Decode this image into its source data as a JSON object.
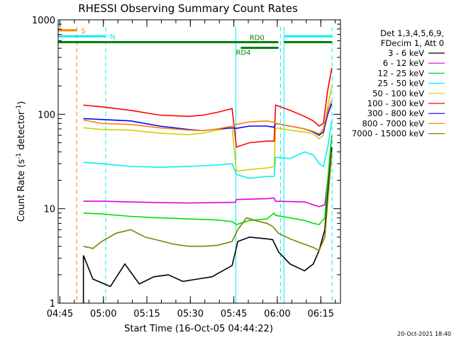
{
  "chart_data": {
    "type": "line",
    "title": "RHESSI Observing Summary Count Rates",
    "xlabel": "Start Time (16-Oct-05 04:44:22)",
    "ylabel": "Count Rate (s⁻¹ detector⁻¹)",
    "ylabel_parts": [
      "Count Rate (s",
      "-1",
      " detector",
      "-1",
      ")"
    ],
    "x_unit": "minutes after 04:44:22",
    "x_ticks": [
      {
        "label": "04:45",
        "value": 0.6
      },
      {
        "label": "05:00",
        "value": 15.6
      },
      {
        "label": "05:15",
        "value": 30.6
      },
      {
        "label": "05:30",
        "value": 45.6
      },
      {
        "label": "05:45",
        "value": 60.6
      },
      {
        "label": "06:00",
        "value": 75.6
      },
      {
        "label": "06:15",
        "value": 90.6
      }
    ],
    "xlim": [
      0,
      97.4
    ],
    "ylim": [
      1,
      1000
    ],
    "y_scale": "log",
    "y_ticks": [
      {
        "label": "1",
        "value": 1
      },
      {
        "label": "10",
        "value": 10
      },
      {
        "label": "100",
        "value": 100
      },
      {
        "label": "1000",
        "value": 1000
      }
    ],
    "legend_header": [
      "Det 1,3,4,5,6,9,",
      "FDecim 1, Att 0"
    ],
    "legend_placement": "right",
    "series": [
      {
        "name": "3 - 6 keV",
        "color": "#000000",
        "points": [
          [
            8.7,
            1.0
          ],
          [
            8.7,
            3.2
          ],
          [
            12,
            1.8
          ],
          [
            18,
            1.5
          ],
          [
            23,
            2.6
          ],
          [
            28,
            1.6
          ],
          [
            33,
            1.9
          ],
          [
            38,
            2.0
          ],
          [
            43,
            1.7
          ],
          [
            48,
            1.8
          ],
          [
            53,
            1.9
          ],
          [
            60,
            2.5
          ],
          [
            62,
            4.5
          ],
          [
            66,
            5.0
          ],
          [
            72,
            4.8
          ],
          [
            74,
            4.7
          ],
          [
            76,
            3.5
          ],
          [
            80,
            2.6
          ],
          [
            85,
            2.2
          ],
          [
            88,
            2.6
          ],
          [
            90,
            3.6
          ],
          [
            92,
            6
          ],
          [
            93,
            15
          ],
          [
            94.4,
            45
          ]
        ]
      },
      {
        "name": "6 - 12 keV",
        "color": "#e000e0",
        "points": [
          [
            8.7,
            12
          ],
          [
            15,
            12
          ],
          [
            25,
            11.8
          ],
          [
            35,
            11.6
          ],
          [
            45,
            11.5
          ],
          [
            55,
            11.6
          ],
          [
            61,
            11.7
          ],
          [
            61.5,
            12.5
          ],
          [
            72,
            12.8
          ],
          [
            74.5,
            13
          ],
          [
            75,
            12
          ],
          [
            85,
            11.8
          ],
          [
            90,
            10.5
          ],
          [
            92,
            11
          ],
          [
            93,
            20
          ],
          [
            94.4,
            60
          ]
        ]
      },
      {
        "name": "12 - 25 keV",
        "color": "#00e000",
        "points": [
          [
            8.7,
            9
          ],
          [
            15,
            8.8
          ],
          [
            25,
            8.3
          ],
          [
            35,
            8.0
          ],
          [
            45,
            7.8
          ],
          [
            55,
            7.6
          ],
          [
            60,
            7.3
          ],
          [
            61.5,
            6.8
          ],
          [
            66,
            7.5
          ],
          [
            72,
            7.8
          ],
          [
            74.5,
            9
          ],
          [
            75,
            8.5
          ],
          [
            80,
            8.0
          ],
          [
            85,
            7.5
          ],
          [
            88,
            7.0
          ],
          [
            90,
            6.8
          ],
          [
            92,
            8
          ],
          [
            93,
            20
          ],
          [
            94.4,
            60
          ]
        ]
      },
      {
        "name": "25 - 50 keV",
        "color": "#00f0f0",
        "points": [
          [
            8.7,
            31
          ],
          [
            15,
            30
          ],
          [
            25,
            28
          ],
          [
            35,
            27.5
          ],
          [
            45,
            28
          ],
          [
            55,
            29
          ],
          [
            60,
            30
          ],
          [
            61.5,
            23
          ],
          [
            66,
            21
          ],
          [
            72,
            22
          ],
          [
            74.5,
            22
          ],
          [
            75,
            35
          ],
          [
            80,
            34
          ],
          [
            85,
            40
          ],
          [
            88,
            37
          ],
          [
            90,
            30
          ],
          [
            91.5,
            28
          ],
          [
            93,
            45
          ],
          [
            94.4,
            85
          ]
        ]
      },
      {
        "name": "50 - 100 keV",
        "color": "#d0d000",
        "points": [
          [
            8.7,
            72
          ],
          [
            15,
            69
          ],
          [
            25,
            68
          ],
          [
            35,
            63
          ],
          [
            45,
            61
          ],
          [
            50,
            63
          ],
          [
            55,
            68
          ],
          [
            60,
            72
          ],
          [
            61.5,
            25
          ],
          [
            66,
            26
          ],
          [
            72,
            27
          ],
          [
            74.5,
            28
          ],
          [
            75,
            72
          ],
          [
            80,
            68
          ],
          [
            85,
            65
          ],
          [
            88,
            62
          ],
          [
            90,
            55
          ],
          [
            91.5,
            60
          ],
          [
            93,
            120
          ],
          [
            94.4,
            200
          ]
        ]
      },
      {
        "name": "100 - 300 keV",
        "color": "#ff0000",
        "points": [
          [
            8.7,
            125
          ],
          [
            15,
            120
          ],
          [
            25,
            110
          ],
          [
            35,
            98
          ],
          [
            45,
            95
          ],
          [
            50,
            98
          ],
          [
            55,
            105
          ],
          [
            60,
            115
          ],
          [
            61.5,
            45
          ],
          [
            66,
            50
          ],
          [
            72,
            52
          ],
          [
            74.5,
            52
          ],
          [
            75,
            125
          ],
          [
            80,
            110
          ],
          [
            85,
            95
          ],
          [
            88,
            85
          ],
          [
            90,
            75
          ],
          [
            91.5,
            80
          ],
          [
            93,
            180
          ],
          [
            94.4,
            310
          ]
        ]
      },
      {
        "name": "300 - 800 keV",
        "color": "#0000ff",
        "points": [
          [
            8.7,
            90
          ],
          [
            15,
            88
          ],
          [
            25,
            85
          ],
          [
            35,
            75
          ],
          [
            45,
            69
          ],
          [
            50,
            67
          ],
          [
            55,
            70
          ],
          [
            60,
            72
          ],
          [
            61.5,
            71
          ],
          [
            66,
            75
          ],
          [
            72,
            75
          ],
          [
            74.5,
            73
          ],
          [
            75,
            80
          ],
          [
            80,
            75
          ],
          [
            85,
            70
          ],
          [
            88,
            65
          ],
          [
            90,
            60
          ],
          [
            91.5,
            65
          ],
          [
            93,
            100
          ],
          [
            94.4,
            130
          ]
        ]
      },
      {
        "name": "800 - 7000 keV",
        "color": "#ff8000",
        "points": [
          [
            8.7,
            87
          ],
          [
            15,
            80
          ],
          [
            25,
            78
          ],
          [
            35,
            72
          ],
          [
            45,
            68
          ],
          [
            50,
            67
          ],
          [
            55,
            70
          ],
          [
            60,
            75
          ],
          [
            61.5,
            78
          ],
          [
            66,
            83
          ],
          [
            72,
            85
          ],
          [
            74.5,
            82
          ],
          [
            75,
            80
          ],
          [
            80,
            75
          ],
          [
            85,
            70
          ],
          [
            88,
            66
          ],
          [
            90,
            62
          ],
          [
            91.5,
            70
          ],
          [
            93,
            110
          ],
          [
            94.4,
            140
          ]
        ]
      },
      {
        "name": "7000 - 15000 keV",
        "color": "#808000",
        "points": [
          [
            8.7,
            4.0
          ],
          [
            12,
            3.8
          ],
          [
            15,
            4.5
          ],
          [
            20,
            5.5
          ],
          [
            25,
            6.0
          ],
          [
            30,
            5.0
          ],
          [
            35,
            4.6
          ],
          [
            40,
            4.2
          ],
          [
            45,
            4.0
          ],
          [
            50,
            4.0
          ],
          [
            55,
            4.1
          ],
          [
            60,
            4.5
          ],
          [
            62,
            6.0
          ],
          [
            65,
            8.0
          ],
          [
            68,
            7.5
          ],
          [
            72,
            7.0
          ],
          [
            74,
            6.5
          ],
          [
            76,
            5.5
          ],
          [
            80,
            4.8
          ],
          [
            85,
            4.2
          ],
          [
            88,
            3.9
          ],
          [
            90,
            3.6
          ],
          [
            92,
            5
          ],
          [
            93,
            12
          ],
          [
            94.4,
            40
          ]
        ]
      }
    ],
    "annotations": [
      {
        "label": "S",
        "color": "#ff8000",
        "x_start": 0,
        "x_end": 6.4,
        "level": 775
      },
      {
        "label": "N",
        "color": "#00f0f0",
        "x_start": 0,
        "x_end": 16.4,
        "level": 670,
        "x_start2": 78.2,
        "x_end2": 94.5
      },
      {
        "label": "RD0",
        "color": "#008000",
        "x_start": 0,
        "x_end": 76,
        "level": 580,
        "x_start2": 77.9,
        "x_end2": 94.5
      },
      {
        "label": "RD4",
        "color": "#008000",
        "x_start": 63,
        "x_end": 76,
        "level": 505
      }
    ],
    "vertical_lines": [
      {
        "x": 0,
        "color": "#00f0f0",
        "style": "solid"
      },
      {
        "x": 6.4,
        "color": "#ff8000",
        "style": "dashed"
      },
      {
        "x": 16.4,
        "color": "#00f0f0",
        "style": "dashed"
      },
      {
        "x": 61.3,
        "color": "#00f0f0",
        "style": "solid"
      },
      {
        "x": 76.7,
        "color": "#00f0f0",
        "style": "dashed"
      },
      {
        "x": 77.9,
        "color": "#00f0f0",
        "style": "solid"
      },
      {
        "x": 94.5,
        "color": "#00f0f0",
        "style": "dashed"
      }
    ],
    "grid": false
  },
  "footer_timestamp": "20-Oct-2021 18:40"
}
